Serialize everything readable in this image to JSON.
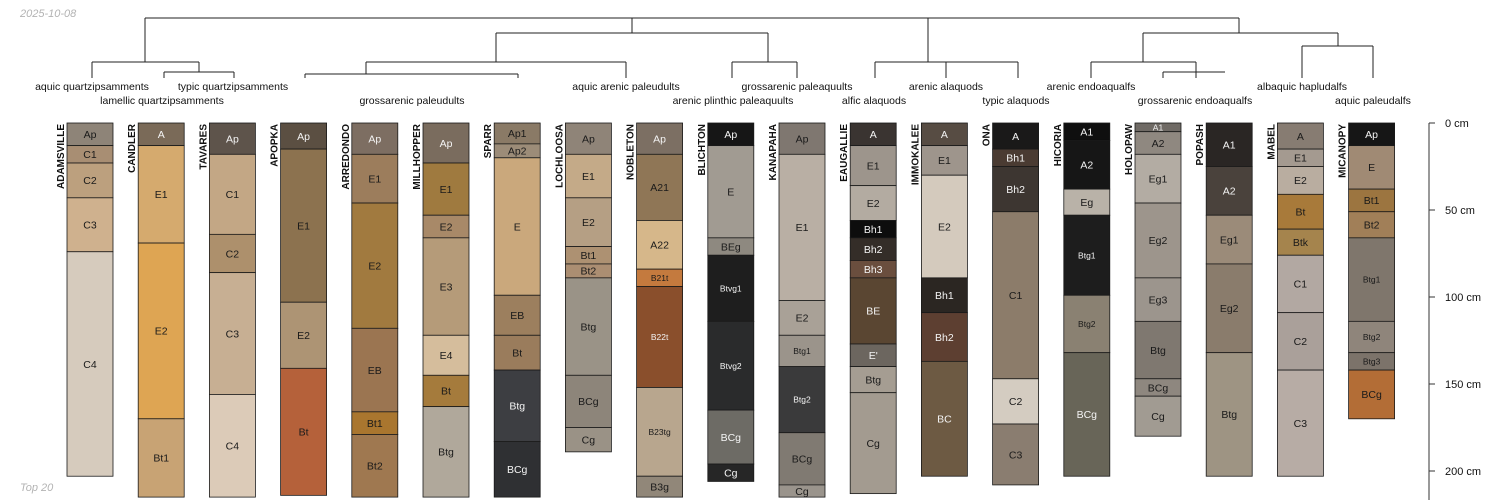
{
  "header": {
    "date": "2025-10-08",
    "footer": "Top 20"
  },
  "chart_data": {
    "type": "soil-profile-sketch",
    "depth_unit": "cm",
    "depth_range": [
      0,
      215
    ],
    "depth_ticks": [
      0,
      50,
      100,
      150,
      200
    ],
    "depth_tick_labels": [
      "0 cm",
      "50 cm",
      "100 cm",
      "150 cm",
      "200 cm"
    ],
    "taxa_labels": [
      "aquic quartzipsamments",
      "lamellic quartzipsamments",
      "typic quartzipsamments",
      "grossarenic paleudults",
      "aquic arenic paleudults",
      "grossarenic paleaquults",
      "arenic plinthic paleaquults",
      "arenic alaquods",
      "alfic alaquods",
      "typic alaquods",
      "arenic endoaqualfs",
      "grossarenic endoaqualfs",
      "albaquic hapludalfs",
      "aquic paleudalfs"
    ],
    "profiles": [
      {
        "name": "ADAMSVILLE",
        "horizons": [
          {
            "h": "Ap",
            "top": 0,
            "bottom": 13,
            "color": "#8e8478"
          },
          {
            "h": "C1",
            "top": 13,
            "bottom": 23,
            "color": "#a88e73"
          },
          {
            "h": "C2",
            "top": 23,
            "bottom": 43,
            "color": "#bca07e"
          },
          {
            "h": "C3",
            "top": 43,
            "bottom": 74,
            "color": "#cfb18e"
          },
          {
            "h": "C4",
            "top": 74,
            "bottom": 203,
            "color": "#d6cbbd"
          }
        ]
      },
      {
        "name": "CANDLER",
        "horizons": [
          {
            "h": "A",
            "top": 0,
            "bottom": 13,
            "color": "#7a6a58"
          },
          {
            "h": "E1",
            "top": 13,
            "bottom": 69,
            "color": "#d5aa6e"
          },
          {
            "h": "E2",
            "top": 69,
            "bottom": 170,
            "color": "#dea553"
          },
          {
            "h": "Bt1",
            "top": 170,
            "bottom": 215,
            "color": "#c8a374"
          }
        ]
      },
      {
        "name": "TAVARES",
        "horizons": [
          {
            "h": "Ap",
            "top": 0,
            "bottom": 18,
            "color": "#5e544b"
          },
          {
            "h": "C1",
            "top": 18,
            "bottom": 64,
            "color": "#c3a785"
          },
          {
            "h": "C2",
            "top": 64,
            "bottom": 86,
            "color": "#ad906c"
          },
          {
            "h": "C3",
            "top": 86,
            "bottom": 156,
            "color": "#c7af93"
          },
          {
            "h": "C4",
            "top": 156,
            "bottom": 215,
            "color": "#dccbb8"
          }
        ]
      },
      {
        "name": "APOPKA",
        "horizons": [
          {
            "h": "Ap",
            "top": 0,
            "bottom": 15,
            "color": "#5b4f42"
          },
          {
            "h": "E1",
            "top": 15,
            "bottom": 103,
            "color": "#8c724f"
          },
          {
            "h": "E2",
            "top": 103,
            "bottom": 141,
            "color": "#ad9474"
          },
          {
            "h": "Bt",
            "top": 141,
            "bottom": 214,
            "color": "#b5613a"
          }
        ]
      },
      {
        "name": "ARREDONDO",
        "horizons": [
          {
            "h": "Ap",
            "top": 0,
            "bottom": 18,
            "color": "#7d6e62"
          },
          {
            "h": "E1",
            "top": 18,
            "bottom": 46,
            "color": "#9c7d5c"
          },
          {
            "h": "E2",
            "top": 46,
            "bottom": 118,
            "color": "#a17a3f"
          },
          {
            "h": "EB",
            "top": 118,
            "bottom": 166,
            "color": "#9b7551"
          },
          {
            "h": "Bt1",
            "top": 166,
            "bottom": 179,
            "color": "#a9762f"
          },
          {
            "h": "Bt2",
            "top": 179,
            "bottom": 215,
            "color": "#9f7850"
          }
        ]
      },
      {
        "name": "MILLHOPPER",
        "horizons": [
          {
            "h": "Ap",
            "top": 0,
            "bottom": 23,
            "color": "#7a6c5e"
          },
          {
            "h": "E1",
            "top": 23,
            "bottom": 53,
            "color": "#9f7a3f"
          },
          {
            "h": "E2",
            "top": 53,
            "bottom": 66,
            "color": "#a88968"
          },
          {
            "h": "E3",
            "top": 66,
            "bottom": 122,
            "color": "#b59b79"
          },
          {
            "h": "E4",
            "top": 122,
            "bottom": 145,
            "color": "#d5bd9c"
          },
          {
            "h": "Bt",
            "top": 145,
            "bottom": 163,
            "color": "#a57b3c"
          },
          {
            "h": "Btg",
            "top": 163,
            "bottom": 215,
            "color": "#b0a89b"
          }
        ]
      },
      {
        "name": "SPARR",
        "horizons": [
          {
            "h": "Ap1",
            "top": 0,
            "bottom": 12,
            "color": "#8a7a66"
          },
          {
            "h": "Ap2",
            "top": 12,
            "bottom": 20,
            "color": "#9c8c78"
          },
          {
            "h": "E",
            "top": 20,
            "bottom": 99,
            "color": "#caa87c"
          },
          {
            "h": "EB",
            "top": 99,
            "bottom": 122,
            "color": "#9c7f5e"
          },
          {
            "h": "Bt",
            "top": 122,
            "bottom": 142,
            "color": "#9a7c5c"
          },
          {
            "h": "Btg",
            "top": 142,
            "bottom": 183,
            "color": "#3d3e42"
          },
          {
            "h": "BCg",
            "top": 183,
            "bottom": 215,
            "color": "#2f3033"
          }
        ]
      },
      {
        "name": "LOCHLOOSA",
        "horizons": [
          {
            "h": "Ap",
            "top": 0,
            "bottom": 18,
            "color": "#8f8478"
          },
          {
            "h": "E1",
            "top": 18,
            "bottom": 43,
            "color": "#c4aa88"
          },
          {
            "h": "E2",
            "top": 43,
            "bottom": 71,
            "color": "#b59f84"
          },
          {
            "h": "Bt1",
            "top": 71,
            "bottom": 81,
            "color": "#ad9172"
          },
          {
            "h": "Bt2",
            "top": 81,
            "bottom": 89,
            "color": "#ab8e72"
          },
          {
            "h": "Btg",
            "top": 89,
            "bottom": 145,
            "color": "#9a9387"
          },
          {
            "h": "BCg",
            "top": 145,
            "bottom": 175,
            "color": "#8d857a"
          },
          {
            "h": "Cg",
            "top": 175,
            "bottom": 189,
            "color": "#9a9286"
          }
        ]
      },
      {
        "name": "NOBLETON",
        "horizons": [
          {
            "h": "Ap",
            "top": 0,
            "bottom": 18,
            "color": "#7c6f63"
          },
          {
            "h": "A21",
            "top": 18,
            "bottom": 56,
            "color": "#8f7656"
          },
          {
            "h": "A22",
            "top": 56,
            "bottom": 84,
            "color": "#d6b78a"
          },
          {
            "h": "B21t",
            "top": 84,
            "bottom": 94,
            "color": "#c47a3e"
          },
          {
            "h": "B22t",
            "top": 94,
            "bottom": 152,
            "color": "#8a4f2c"
          },
          {
            "h": "B23tg",
            "top": 152,
            "bottom": 203,
            "color": "#b8a68e"
          },
          {
            "h": "B3g",
            "top": 203,
            "bottom": 215,
            "color": "#918779"
          }
        ]
      },
      {
        "name": "BLICHTON",
        "horizons": [
          {
            "h": "Ap",
            "top": 0,
            "bottom": 13,
            "color": "#161616"
          },
          {
            "h": "E",
            "top": 13,
            "bottom": 66,
            "color": "#a19b92"
          },
          {
            "h": "BEg",
            "top": 66,
            "bottom": 76,
            "color": "#8e8980"
          },
          {
            "h": "Btvg1",
            "top": 76,
            "bottom": 114,
            "color": "#1e1e1e"
          },
          {
            "h": "Btvg2",
            "top": 114,
            "bottom": 165,
            "color": "#2a2b2c"
          },
          {
            "h": "BCg",
            "top": 165,
            "bottom": 196,
            "color": "#6d6b65"
          },
          {
            "h": "Cg",
            "top": 196,
            "bottom": 206,
            "color": "#262626"
          }
        ]
      },
      {
        "name": "KANAPAHA",
        "horizons": [
          {
            "h": "Ap",
            "top": 0,
            "bottom": 18,
            "color": "#7f7770"
          },
          {
            "h": "E1",
            "top": 18,
            "bottom": 102,
            "color": "#b9afa4"
          },
          {
            "h": "E2",
            "top": 102,
            "bottom": 122,
            "color": "#a9a197"
          },
          {
            "h": "Btg1",
            "top": 122,
            "bottom": 140,
            "color": "#9b948b"
          },
          {
            "h": "Btg2",
            "top": 140,
            "bottom": 178,
            "color": "#3a3a3b"
          },
          {
            "h": "BCg",
            "top": 178,
            "bottom": 208,
            "color": "#807a72"
          },
          {
            "h": "Cg",
            "top": 208,
            "bottom": 215,
            "color": "#9a948c"
          }
        ]
      },
      {
        "name": "EAUGALLIE",
        "horizons": [
          {
            "h": "A",
            "top": 0,
            "bottom": 13,
            "color": "#3a3431"
          },
          {
            "h": "E1",
            "top": 13,
            "bottom": 36,
            "color": "#9d958c"
          },
          {
            "h": "E2",
            "top": 36,
            "bottom": 56,
            "color": "#b3aba1"
          },
          {
            "h": "Bh1",
            "top": 56,
            "bottom": 66,
            "color": "#0d0d0d"
          },
          {
            "h": "Bh2",
            "top": 66,
            "bottom": 79,
            "color": "#342d28"
          },
          {
            "h": "Bh3",
            "top": 79,
            "bottom": 89,
            "color": "#6a4e3e"
          },
          {
            "h": "BE",
            "top": 89,
            "bottom": 127,
            "color": "#5a4632"
          },
          {
            "h": "E'",
            "top": 127,
            "bottom": 140,
            "color": "#6c665f"
          },
          {
            "h": "Btg",
            "top": 140,
            "bottom": 155,
            "color": "#a59d92"
          },
          {
            "h": "Cg",
            "top": 155,
            "bottom": 213,
            "color": "#a39b90"
          }
        ]
      },
      {
        "name": "IMMOKALEE",
        "horizons": [
          {
            "h": "A",
            "top": 0,
            "bottom": 13,
            "color": "#574c43"
          },
          {
            "h": "E1",
            "top": 13,
            "bottom": 30,
            "color": "#9e958c"
          },
          {
            "h": "E2",
            "top": 30,
            "bottom": 89,
            "color": "#d4cabd"
          },
          {
            "h": "Bh1",
            "top": 89,
            "bottom": 109,
            "color": "#2b2622"
          },
          {
            "h": "Bh2",
            "top": 109,
            "bottom": 137,
            "color": "#5d3f31"
          },
          {
            "h": "BC",
            "top": 137,
            "bottom": 203,
            "color": "#6d5a43"
          }
        ]
      },
      {
        "name": "ONA",
        "horizons": [
          {
            "h": "A",
            "top": 0,
            "bottom": 15,
            "color": "#1a1919"
          },
          {
            "h": "Bh1",
            "top": 15,
            "bottom": 25,
            "color": "#4a3b32"
          },
          {
            "h": "Bh2",
            "top": 25,
            "bottom": 51,
            "color": "#3d3631"
          },
          {
            "h": "C1",
            "top": 51,
            "bottom": 147,
            "color": "#8c7c6a"
          },
          {
            "h": "C2",
            "top": 147,
            "bottom": 173,
            "color": "#d4ccc1"
          },
          {
            "h": "C3",
            "top": 173,
            "bottom": 208,
            "color": "#8a7d70"
          }
        ]
      },
      {
        "name": "HICORIA",
        "horizons": [
          {
            "h": "A1",
            "top": 0,
            "bottom": 10,
            "color": "#0f0f0f"
          },
          {
            "h": "A2",
            "top": 10,
            "bottom": 38,
            "color": "#161616"
          },
          {
            "h": "Eg",
            "top": 38,
            "bottom": 53,
            "color": "#b9b2a8"
          },
          {
            "h": "Btg1",
            "top": 53,
            "bottom": 99,
            "color": "#1d1d1d"
          },
          {
            "h": "Btg2",
            "top": 99,
            "bottom": 132,
            "color": "#8a8172"
          },
          {
            "h": "BCg",
            "top": 132,
            "bottom": 203,
            "color": "#686558"
          }
        ]
      },
      {
        "name": "HOLOPAW",
        "horizons": [
          {
            "h": "A1",
            "top": 0,
            "bottom": 5,
            "color": "#6f6a65"
          },
          {
            "h": "A2",
            "top": 5,
            "bottom": 18,
            "color": "#8f8880"
          },
          {
            "h": "Eg1",
            "top": 18,
            "bottom": 46,
            "color": "#b3aca3"
          },
          {
            "h": "Eg2",
            "top": 46,
            "bottom": 89,
            "color": "#9d958c"
          },
          {
            "h": "Eg3",
            "top": 89,
            "bottom": 114,
            "color": "#9c958d"
          },
          {
            "h": "Btg",
            "top": 114,
            "bottom": 147,
            "color": "#7f7870"
          },
          {
            "h": "BCg",
            "top": 147,
            "bottom": 157,
            "color": "#8e877f"
          },
          {
            "h": "Cg",
            "top": 157,
            "bottom": 180,
            "color": "#a19b92"
          }
        ]
      },
      {
        "name": "POPASH",
        "horizons": [
          {
            "h": "A1",
            "top": 0,
            "bottom": 25,
            "color": "#2a2624"
          },
          {
            "h": "A2",
            "top": 25,
            "bottom": 53,
            "color": "#4a423c"
          },
          {
            "h": "Eg1",
            "top": 53,
            "bottom": 81,
            "color": "#9b8b79"
          },
          {
            "h": "Eg2",
            "top": 81,
            "bottom": 132,
            "color": "#8a7c6c"
          },
          {
            "h": "Btg",
            "top": 132,
            "bottom": 203,
            "color": "#9e9483"
          }
        ]
      },
      {
        "name": "MABEL",
        "horizons": [
          {
            "h": "A",
            "top": 0,
            "bottom": 15,
            "color": "#877c72"
          },
          {
            "h": "E1",
            "top": 15,
            "bottom": 25,
            "color": "#a49a90"
          },
          {
            "h": "E2",
            "top": 25,
            "bottom": 41,
            "color": "#b9ada0"
          },
          {
            "h": "Bt",
            "top": 41,
            "bottom": 61,
            "color": "#a87a3a"
          },
          {
            "h": "Btk",
            "top": 61,
            "bottom": 76,
            "color": "#a5844d"
          },
          {
            "h": "C1",
            "top": 76,
            "bottom": 109,
            "color": "#b2a8a2"
          },
          {
            "h": "C2",
            "top": 109,
            "bottom": 142,
            "color": "#aaa09a"
          },
          {
            "h": "C3",
            "top": 142,
            "bottom": 203,
            "color": "#b7aca5"
          }
        ]
      },
      {
        "name": "MICANOPY",
        "horizons": [
          {
            "h": "Ap",
            "top": 0,
            "bottom": 13,
            "color": "#161616"
          },
          {
            "h": "E",
            "top": 13,
            "bottom": 38,
            "color": "#a08a74"
          },
          {
            "h": "Bt1",
            "top": 38,
            "bottom": 51,
            "color": "#9c7540"
          },
          {
            "h": "Bt2",
            "top": 51,
            "bottom": 66,
            "color": "#a17f58"
          },
          {
            "h": "Btg1",
            "top": 66,
            "bottom": 114,
            "color": "#7f766c"
          },
          {
            "h": "Btg2",
            "top": 114,
            "bottom": 132,
            "color": "#8f857b"
          },
          {
            "h": "Btg3",
            "top": 132,
            "bottom": 142,
            "color": "#7c736a"
          },
          {
            "h": "BCg",
            "top": 142,
            "bottom": 170,
            "color": "#b36d36"
          }
        ]
      }
    ]
  }
}
